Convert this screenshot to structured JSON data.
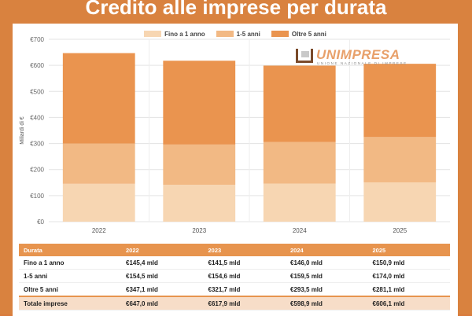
{
  "title": "Credito alle imprese per durata",
  "colors": {
    "background": "#d9823f",
    "series_short": "#f7d6b2",
    "series_mid": "#f2b984",
    "series_long": "#ea944f",
    "table_header": "#e7944e"
  },
  "logo": {
    "name": "UNIMPRESA",
    "subtitle": "UNIONE NAZIONALE DI IMPRESE"
  },
  "chart_data": {
    "type": "bar",
    "stacked": true,
    "categories": [
      "2022",
      "2023",
      "2024",
      "2025"
    ],
    "series": [
      {
        "name": "Fino a 1 anno",
        "values": [
          145.4,
          141.5,
          146.0,
          150.9
        ],
        "color": "#f7d6b2"
      },
      {
        "name": "1-5 anni",
        "values": [
          154.5,
          154.6,
          159.5,
          174.0
        ],
        "color": "#f2b984"
      },
      {
        "name": "Oltre 5 anni",
        "values": [
          347.1,
          321.7,
          293.5,
          281.1
        ],
        "color": "#ea944f"
      }
    ],
    "ylabel": "Miliardi di €",
    "ylim": [
      0,
      700
    ],
    "yticks": [
      "€0",
      "€100",
      "€200",
      "€300",
      "€400",
      "€500",
      "€600",
      "€700"
    ],
    "grid": true,
    "legend_position": "top"
  },
  "table": {
    "headers": [
      "Durata",
      "2022",
      "2023",
      "2024",
      "2025"
    ],
    "rows": [
      [
        "Fino a 1 anno",
        "€145,4 mld",
        "€141,5 mld",
        "€146,0 mld",
        "€150,9 mld"
      ],
      [
        "1-5 anni",
        "€154,5 mld",
        "€154,6 mld",
        "€159,5 mld",
        "€174,0 mld"
      ],
      [
        "Oltre 5 anni",
        "€347,1 mld",
        "€321,7 mld",
        "€293,5 mld",
        "€281,1 mld"
      ]
    ],
    "total": [
      "Totale imprese",
      "€647,0 mld",
      "€617,9 mld",
      "€598,9 mld",
      "€606,1 mld"
    ]
  }
}
